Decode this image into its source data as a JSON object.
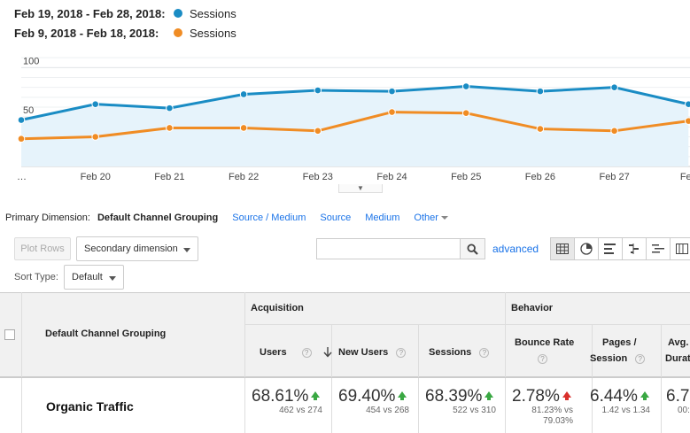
{
  "legend": [
    {
      "range": "Feb 19, 2018 - Feb 28, 2018:",
      "metric": "Sessions",
      "color": "#1a8cc4"
    },
    {
      "range": "Feb 9, 2018 - Feb 18, 2018:",
      "metric": "Sessions",
      "color": "#f08c24"
    }
  ],
  "chart_data": {
    "type": "line",
    "categories": [
      "…",
      "Feb 20",
      "Feb 21",
      "Feb 22",
      "Feb 23",
      "Feb 24",
      "Feb 25",
      "Feb 26",
      "Feb 27",
      "Feb"
    ],
    "series": [
      {
        "name": "Sessions",
        "range": "Feb 19, 2018 - Feb 28, 2018",
        "color": "#1a8cc4",
        "values": [
          47,
          63,
          59,
          73,
          77,
          76,
          81,
          76,
          80,
          63
        ]
      },
      {
        "name": "Sessions",
        "range": "Feb 9, 2018 - Feb 18, 2018",
        "color": "#f08c24",
        "values": [
          28,
          30,
          39,
          39,
          36,
          55,
          54,
          38,
          36,
          46
        ]
      }
    ],
    "yticks": [
      "100",
      "50"
    ],
    "ylim": [
      0,
      120
    ],
    "grid": true
  },
  "primary_dimension": {
    "label": "Primary Dimension:",
    "active": "Default Channel Grouping",
    "options": [
      "Source / Medium",
      "Source",
      "Medium",
      "Other"
    ]
  },
  "toolbar": {
    "plot_rows": "Plot Rows",
    "secondary_dimension": "Secondary dimension",
    "search_placeholder": "",
    "advanced": "advanced",
    "sort_type_label": "Sort Type:",
    "sort_type_value": "Default"
  },
  "table": {
    "dimension_header": "Default Channel Grouping",
    "group_acquisition": "Acquisition",
    "group_behavior": "Behavior",
    "columns": {
      "users": "Users",
      "new_users": "New Users",
      "sessions": "Sessions",
      "bounce_rate": "Bounce Rate",
      "pages_session_1": "Pages /",
      "pages_session_2": "Session",
      "avg_1": "Avg.",
      "avg_2": "Durat"
    },
    "help_glyph": "?",
    "row": {
      "name": "Organic Traffic",
      "users": "68.61%",
      "users_sub": "462 vs 274",
      "new_users": "69.40%",
      "new_users_sub": "454 vs 268",
      "sessions": "68.39%",
      "sessions_sub": "522 vs 310",
      "bounce_rate": "2.78%",
      "bounce_sub_1": "81.23% vs",
      "bounce_sub_2": "79.03%",
      "pages_session": "6.44%",
      "pages_session_sub": "1.42 vs 1.34",
      "avg": "6.7",
      "avg_sub": "00:"
    }
  }
}
